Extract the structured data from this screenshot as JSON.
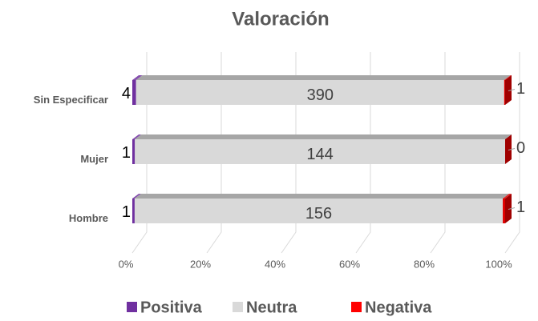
{
  "chart_data": {
    "type": "bar",
    "orientation": "horizontal",
    "stacking": "percent",
    "title": "Valoración",
    "categories": [
      "Sin Especificar",
      "Mujer",
      "Hombre"
    ],
    "series": [
      {
        "name": "Positiva",
        "color": "#7030a0",
        "values": [
          4,
          1,
          1
        ]
      },
      {
        "name": "Neutra",
        "color": "#d9d9d9",
        "values": [
          390,
          144,
          156
        ]
      },
      {
        "name": "Negativa",
        "color": "#e00000",
        "values": [
          1,
          0,
          1
        ]
      }
    ],
    "xlim": [
      0,
      100
    ],
    "xticks": [
      {
        "value": 0,
        "label": "0%"
      },
      {
        "value": 20,
        "label": "20%"
      },
      {
        "value": 40,
        "label": "40%"
      },
      {
        "value": 60,
        "label": "60%"
      },
      {
        "value": 80,
        "label": "80%"
      },
      {
        "value": 100,
        "label": "100%"
      }
    ],
    "grid": true,
    "legend": "bottom"
  }
}
